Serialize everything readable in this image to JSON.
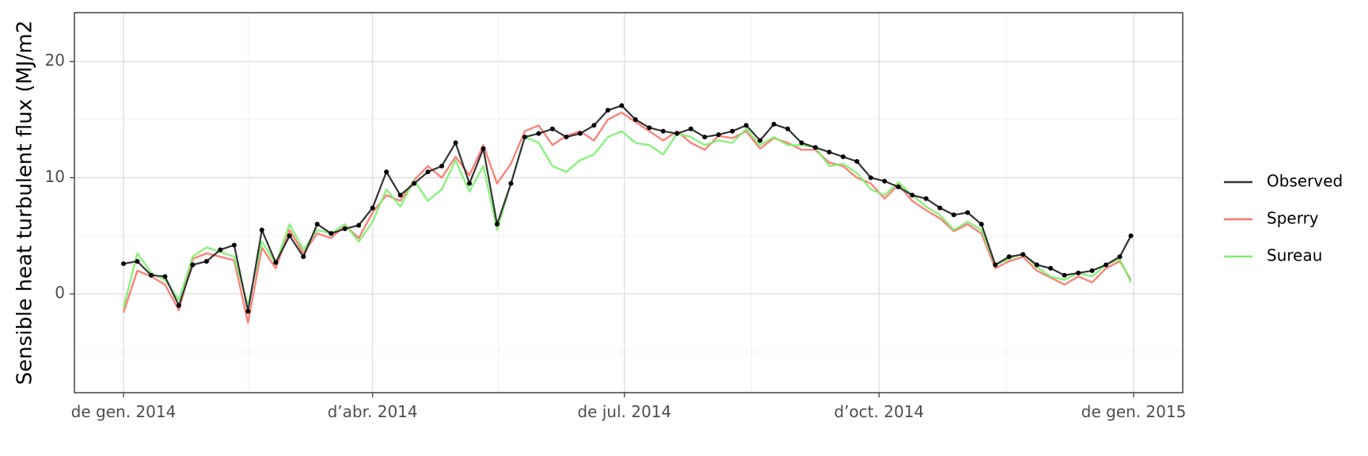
{
  "chart_data": {
    "type": "line",
    "title": "",
    "xlabel": "",
    "ylabel": "Sensible heat turbulent flux (MJ/m2",
    "x_start": "2014-01-01",
    "x_end": "2015-01-01",
    "x_ticks": [
      {
        "date": "2014-01-01",
        "label": "de gen. 2014"
      },
      {
        "date": "2014-04-01",
        "label": "d’abr. 2014"
      },
      {
        "date": "2014-07-01",
        "label": "de jul. 2014"
      },
      {
        "date": "2014-10-01",
        "label": "d’oct. 2014"
      },
      {
        "date": "2015-01-01",
        "label": "de gen. 2015"
      }
    ],
    "ylim": [
      -8.5,
      24.2
    ],
    "y_ticks": [
      0,
      10,
      20
    ],
    "grid": true,
    "legend_position": "right",
    "series": [
      {
        "name": "Observed",
        "color": "#333333",
        "markers": true,
        "values": [
          [
            1,
            2.6
          ],
          [
            6,
            2.8
          ],
          [
            11,
            1.6
          ],
          [
            16,
            1.5
          ],
          [
            21,
            -1.0
          ],
          [
            26,
            2.5
          ],
          [
            31,
            2.8
          ],
          [
            36,
            3.8
          ],
          [
            41,
            4.2
          ],
          [
            46,
            -1.5
          ],
          [
            51,
            5.5
          ],
          [
            56,
            2.7
          ],
          [
            61,
            5.0
          ],
          [
            66,
            3.2
          ],
          [
            71,
            6.0
          ],
          [
            76,
            5.2
          ],
          [
            81,
            5.6
          ],
          [
            86,
            5.9
          ],
          [
            91,
            7.4
          ],
          [
            96,
            10.5
          ],
          [
            101,
            8.5
          ],
          [
            106,
            9.5
          ],
          [
            111,
            10.5
          ],
          [
            116,
            11.0
          ],
          [
            121,
            13.0
          ],
          [
            126,
            9.5
          ],
          [
            131,
            12.5
          ],
          [
            136,
            6.0
          ],
          [
            141,
            9.5
          ],
          [
            146,
            13.5
          ],
          [
            151,
            13.8
          ],
          [
            156,
            14.2
          ],
          [
            161,
            13.5
          ],
          [
            166,
            13.8
          ],
          [
            171,
            14.5
          ],
          [
            176,
            15.8
          ],
          [
            181,
            16.2
          ],
          [
            186,
            15.0
          ],
          [
            191,
            14.3
          ],
          [
            196,
            14.0
          ],
          [
            201,
            13.8
          ],
          [
            206,
            14.2
          ],
          [
            211,
            13.5
          ],
          [
            216,
            13.7
          ],
          [
            221,
            14.0
          ],
          [
            226,
            14.5
          ],
          [
            231,
            13.2
          ],
          [
            236,
            14.6
          ],
          [
            241,
            14.2
          ],
          [
            246,
            13.0
          ],
          [
            251,
            12.6
          ],
          [
            256,
            12.2
          ],
          [
            261,
            11.8
          ],
          [
            266,
            11.4
          ],
          [
            271,
            10.0
          ],
          [
            276,
            9.7
          ],
          [
            281,
            9.2
          ],
          [
            286,
            8.5
          ],
          [
            291,
            8.2
          ],
          [
            296,
            7.4
          ],
          [
            301,
            6.8
          ],
          [
            306,
            7.0
          ],
          [
            311,
            6.0
          ],
          [
            316,
            2.5
          ],
          [
            321,
            3.2
          ],
          [
            326,
            3.4
          ],
          [
            331,
            2.5
          ],
          [
            336,
            2.2
          ],
          [
            341,
            1.6
          ],
          [
            346,
            1.8
          ],
          [
            351,
            2.0
          ],
          [
            356,
            2.5
          ],
          [
            361,
            3.2
          ],
          [
            365,
            5.0
          ]
        ]
      },
      {
        "name": "Sperry",
        "color": "#f8766d",
        "markers": false,
        "values": [
          [
            1,
            -1.6
          ],
          [
            6,
            2.0
          ],
          [
            11,
            1.5
          ],
          [
            16,
            0.8
          ],
          [
            21,
            -1.4
          ],
          [
            26,
            3.0
          ],
          [
            31,
            3.5
          ],
          [
            36,
            3.2
          ],
          [
            41,
            2.9
          ],
          [
            46,
            -2.5
          ],
          [
            51,
            4.0
          ],
          [
            56,
            2.2
          ],
          [
            61,
            5.5
          ],
          [
            66,
            3.5
          ],
          [
            71,
            5.2
          ],
          [
            76,
            4.8
          ],
          [
            81,
            5.9
          ],
          [
            86,
            4.8
          ],
          [
            91,
            7.0
          ],
          [
            96,
            8.5
          ],
          [
            101,
            8.0
          ],
          [
            106,
            9.8
          ],
          [
            111,
            11.0
          ],
          [
            116,
            10.0
          ],
          [
            121,
            11.8
          ],
          [
            126,
            10.2
          ],
          [
            131,
            12.8
          ],
          [
            136,
            9.5
          ],
          [
            141,
            11.2
          ],
          [
            146,
            14.0
          ],
          [
            151,
            14.5
          ],
          [
            156,
            12.8
          ],
          [
            161,
            13.6
          ],
          [
            166,
            14.0
          ],
          [
            171,
            13.2
          ],
          [
            176,
            15.0
          ],
          [
            181,
            15.6
          ],
          [
            186,
            14.8
          ],
          [
            191,
            14.0
          ],
          [
            196,
            13.2
          ],
          [
            201,
            14.0
          ],
          [
            206,
            13.0
          ],
          [
            211,
            12.4
          ],
          [
            216,
            13.6
          ],
          [
            221,
            13.4
          ],
          [
            226,
            14.0
          ],
          [
            231,
            12.5
          ],
          [
            236,
            13.4
          ],
          [
            241,
            13.0
          ],
          [
            246,
            12.4
          ],
          [
            251,
            12.4
          ],
          [
            256,
            11.3
          ],
          [
            261,
            11.0
          ],
          [
            266,
            10.0
          ],
          [
            271,
            9.5
          ],
          [
            276,
            8.2
          ],
          [
            281,
            9.4
          ],
          [
            286,
            8.0
          ],
          [
            291,
            7.2
          ],
          [
            296,
            6.5
          ],
          [
            301,
            5.4
          ],
          [
            306,
            6.0
          ],
          [
            311,
            5.2
          ],
          [
            316,
            2.2
          ],
          [
            321,
            2.8
          ],
          [
            326,
            3.2
          ],
          [
            331,
            2.0
          ],
          [
            336,
            1.4
          ],
          [
            341,
            0.8
          ],
          [
            346,
            1.5
          ],
          [
            351,
            1.0
          ],
          [
            356,
            2.2
          ],
          [
            361,
            2.8
          ],
          [
            365,
            1.2
          ]
        ]
      },
      {
        "name": "Sureau",
        "color": "#7cf070",
        "markers": false,
        "values": [
          [
            1,
            -1.2
          ],
          [
            6,
            3.5
          ],
          [
            11,
            1.8
          ],
          [
            16,
            1.2
          ],
          [
            21,
            -0.5
          ],
          [
            26,
            3.2
          ],
          [
            31,
            4.0
          ],
          [
            36,
            3.6
          ],
          [
            41,
            3.2
          ],
          [
            46,
            -1.0
          ],
          [
            51,
            4.5
          ],
          [
            56,
            2.6
          ],
          [
            61,
            6.0
          ],
          [
            66,
            3.8
          ],
          [
            71,
            5.5
          ],
          [
            76,
            5.2
          ],
          [
            81,
            6.0
          ],
          [
            86,
            4.5
          ],
          [
            91,
            6.2
          ],
          [
            96,
            9.0
          ],
          [
            101,
            7.5
          ],
          [
            106,
            9.8
          ],
          [
            111,
            8.0
          ],
          [
            116,
            9.0
          ],
          [
            121,
            11.5
          ],
          [
            126,
            8.8
          ],
          [
            131,
            11.0
          ],
          [
            136,
            5.5
          ],
          [
            141,
            9.5
          ],
          [
            146,
            13.5
          ],
          [
            151,
            13.0
          ],
          [
            156,
            11.0
          ],
          [
            161,
            10.5
          ],
          [
            166,
            11.5
          ],
          [
            171,
            12.0
          ],
          [
            176,
            13.5
          ],
          [
            181,
            14.0
          ],
          [
            186,
            13.0
          ],
          [
            191,
            12.8
          ],
          [
            196,
            12.0
          ],
          [
            201,
            13.8
          ],
          [
            206,
            13.5
          ],
          [
            211,
            12.8
          ],
          [
            216,
            13.2
          ],
          [
            221,
            13.0
          ],
          [
            226,
            14.2
          ],
          [
            231,
            12.8
          ],
          [
            236,
            13.5
          ],
          [
            241,
            12.8
          ],
          [
            246,
            12.8
          ],
          [
            251,
            12.6
          ],
          [
            256,
            11.0
          ],
          [
            261,
            11.2
          ],
          [
            266,
            10.4
          ],
          [
            271,
            9.0
          ],
          [
            276,
            8.5
          ],
          [
            281,
            9.6
          ],
          [
            286,
            8.5
          ],
          [
            291,
            7.5
          ],
          [
            296,
            6.8
          ],
          [
            301,
            5.5
          ],
          [
            306,
            6.2
          ],
          [
            311,
            5.5
          ],
          [
            316,
            2.5
          ],
          [
            321,
            3.0
          ],
          [
            326,
            3.5
          ],
          [
            331,
            2.3
          ],
          [
            336,
            1.5
          ],
          [
            341,
            1.2
          ],
          [
            346,
            1.8
          ],
          [
            351,
            1.5
          ],
          [
            356,
            2.5
          ],
          [
            361,
            3.0
          ],
          [
            365,
            1.0
          ]
        ]
      }
    ]
  }
}
